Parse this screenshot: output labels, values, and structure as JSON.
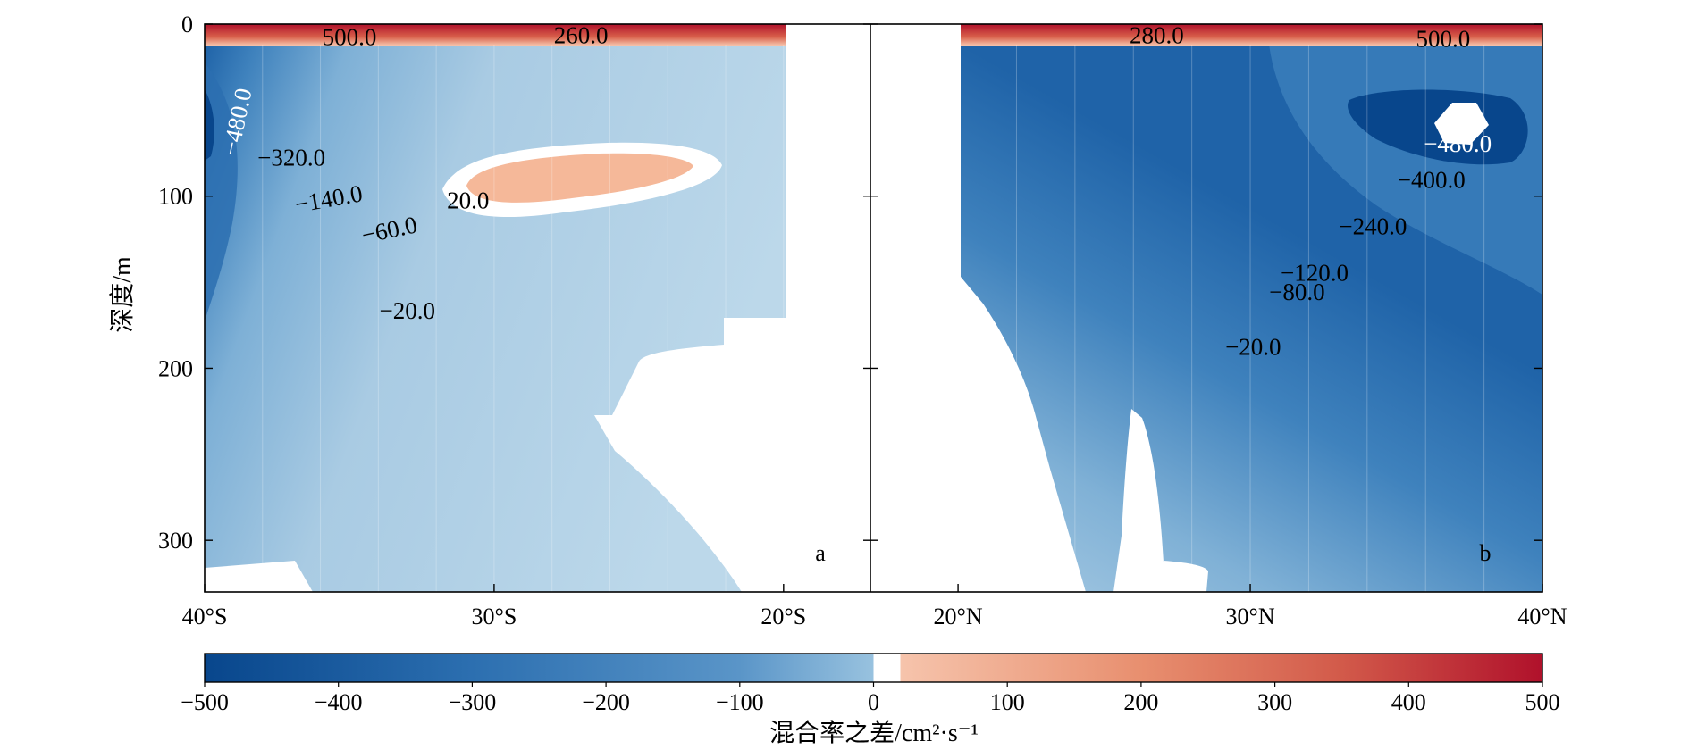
{
  "chart_data": {
    "type": "contourf",
    "ylabel": "深度/m",
    "ylim": [
      330,
      0
    ],
    "yticks": [
      0,
      100,
      200,
      300
    ],
    "colorbar": {
      "label": "混合率之差/cm²·s⁻¹",
      "range": [
        -500,
        500
      ],
      "ticks": [
        -500,
        -400,
        -300,
        -200,
        -100,
        0,
        100,
        200,
        300,
        400,
        500
      ],
      "tick_labels": [
        "−500",
        "−400",
        "−300",
        "−200",
        "−100",
        "0",
        "100",
        "200",
        "300",
        "400",
        "500"
      ],
      "colors_negative": [
        "#08468c",
        "#1f63a8",
        "#3b82bd",
        "#6ba3cf",
        "#98c2df",
        "#c2dcec"
      ],
      "colors_positive": [
        "#f5c2a8",
        "#e98a6a",
        "#d45a48",
        "#b5172d"
      ]
    },
    "panels": [
      {
        "id": "a",
        "xlim": [
          -40,
          -17
        ],
        "xticks": [
          -40,
          -30,
          -20
        ],
        "xtick_labels": [
          "40°S",
          "30°S",
          "20°S"
        ],
        "contour_labels": [
          {
            "text": "500.0",
            "lat": -35,
            "depth": 9
          },
          {
            "text": "260.0",
            "lat": -27,
            "depth": 8
          },
          {
            "text": "−480.0",
            "lat": -38.8,
            "depth": 57,
            "rotate": -78
          },
          {
            "text": "−320.0",
            "lat": -37,
            "depth": 79
          },
          {
            "text": "−140.0",
            "lat": -35.7,
            "depth": 103,
            "rotate": -10
          },
          {
            "text": "−60.0",
            "lat": -33.6,
            "depth": 121,
            "rotate": -12
          },
          {
            "text": "−20.0",
            "lat": -33,
            "depth": 168
          },
          {
            "text": "20.0",
            "lat": -30.9,
            "depth": 104
          }
        ]
      },
      {
        "id": "b",
        "xlim": [
          17,
          40
        ],
        "xticks": [
          20,
          30,
          40
        ],
        "xtick_labels": [
          "20°N",
          "30°N",
          "40°N"
        ],
        "contour_labels": [
          {
            "text": "280.0",
            "lat": 26.8,
            "depth": 8
          },
          {
            "text": "500.0",
            "lat": 36.6,
            "depth": 10
          },
          {
            "text": "−480.0",
            "lat": 37.1,
            "depth": 71
          },
          {
            "text": "−400.0",
            "lat": 36.2,
            "depth": 92
          },
          {
            "text": "−240.0",
            "lat": 34.2,
            "depth": 119
          },
          {
            "text": "−120.0",
            "lat": 32.2,
            "depth": 146
          },
          {
            "text": "−80.0",
            "lat": 31.6,
            "depth": 157
          },
          {
            "text": "−20.0",
            "lat": 30.1,
            "depth": 189
          }
        ]
      }
    ]
  }
}
